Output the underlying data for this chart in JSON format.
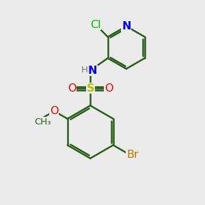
{
  "background_color": "#ebebeb",
  "bond_color": "#2a5c1a",
  "bond_width": 1.8,
  "atom_colors": {
    "N": "#0000ee",
    "O": "#ee0000",
    "S": "#bbbb00",
    "Cl": "#00bb00",
    "Br": "#bb7700",
    "H": "#777777",
    "C": "#2a5c1a"
  },
  "figsize": [
    3.0,
    3.0
  ],
  "dpi": 100
}
